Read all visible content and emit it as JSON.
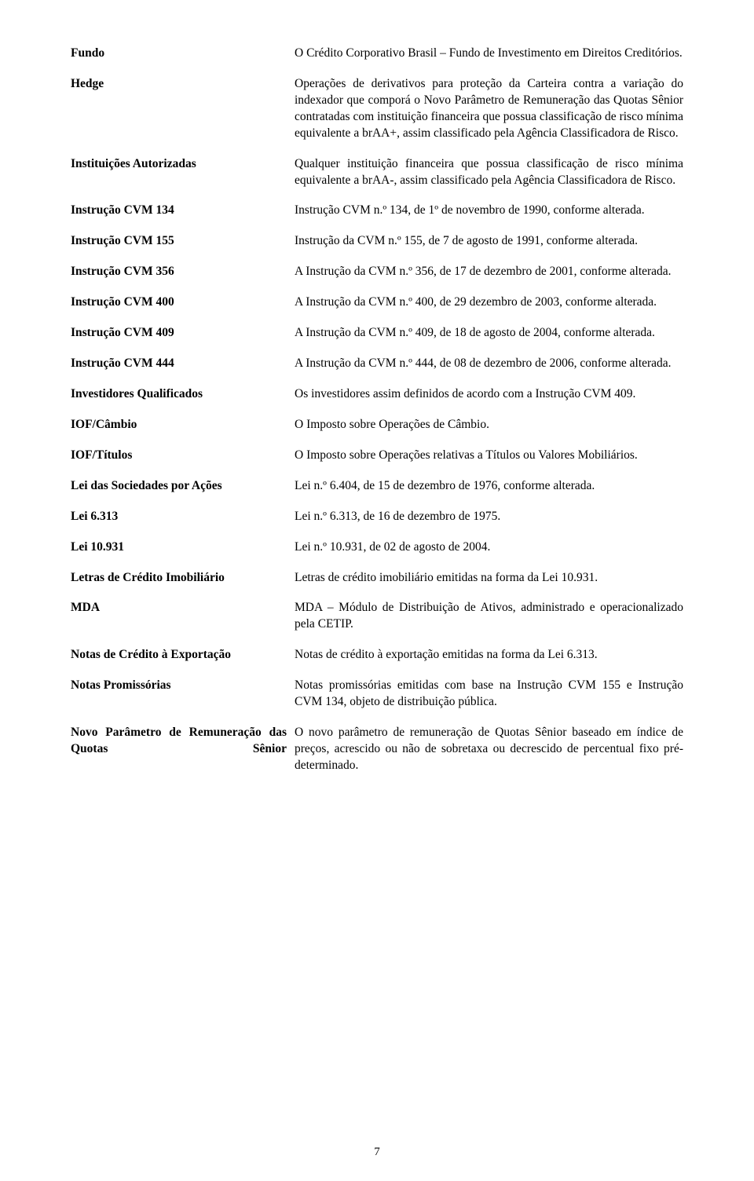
{
  "rows": [
    {
      "term": "Fundo",
      "def": "O Crédito Corporativo Brasil – Fundo de Investimento em Direitos Creditórios."
    },
    {
      "term": "Hedge",
      "def": "Operações de derivativos para proteção da Carteira contra a variação do indexador que comporá o Novo Parâmetro de Remuneração das Quotas Sênior contratadas com instituição financeira que possua classificação de risco mínima equivalente a brAA+, assim classificado pela Agência Classificadora de Risco."
    },
    {
      "term": "Instituições Autorizadas",
      "def": "Qualquer instituição financeira que possua classificação de risco mínima equivalente a brAA-, assim classificado pela Agência Classificadora de Risco."
    },
    {
      "term": "Instrução CVM 134",
      "def": "Instrução CVM n.º 134, de 1º de novembro de 1990, conforme alterada."
    },
    {
      "term": "Instrução CVM 155",
      "def": "Instrução da CVM n.º 155, de 7 de agosto de 1991, conforme alterada."
    },
    {
      "term": "Instrução CVM 356",
      "def": "A Instrução da CVM n.º 356, de 17 de dezembro de 2001, conforme alterada."
    },
    {
      "term": "Instrução CVM 400",
      "def": "A Instrução da CVM n.º 400, de 29 dezembro de 2003, conforme alterada."
    },
    {
      "term": "Instrução CVM 409",
      "def": "A Instrução da CVM n.º 409, de 18 de agosto de 2004, conforme alterada."
    },
    {
      "term": "Instrução CVM 444",
      "def": "A Instrução da CVM n.º 444, de 08 de dezembro de 2006, conforme alterada."
    },
    {
      "term": "Investidores Qualificados",
      "def": "Os investidores assim definidos de acordo com a Instrução CVM 409."
    },
    {
      "term": "IOF/Câmbio",
      "def": "O Imposto sobre Operações de Câmbio."
    },
    {
      "term": "IOF/Títulos",
      "def": "O Imposto sobre Operações relativas a Títulos ou Valores Mobiliários."
    },
    {
      "term": "Lei das Sociedades por Ações",
      "def": "Lei n.º 6.404, de 15 de dezembro de 1976, conforme alterada."
    },
    {
      "term": "Lei 6.313",
      "def": "Lei n.º 6.313, de 16 de dezembro de 1975."
    },
    {
      "term": "Lei 10.931",
      "def": "Lei n.º 10.931, de 02 de agosto de 2004."
    },
    {
      "term": "Letras de Crédito Imobiliário",
      "def": "Letras de crédito imobiliário emitidas na forma da Lei 10.931."
    },
    {
      "term": "MDA",
      "def": "MDA – Módulo de Distribuição de Ativos, administrado e operacionalizado pela CETIP."
    },
    {
      "term": "Notas de Crédito à Exportação",
      "def": "Notas de crédito à exportação emitidas na forma da Lei 6.313."
    },
    {
      "term": "Notas Promissórias",
      "def": "Notas promissórias emitidas com base na Instrução CVM 155 e Instrução CVM 134, objeto de distribuição pública."
    },
    {
      "term": "Novo Parâmetro de Remuneração das Quotas Sênior",
      "justify": true,
      "def": "O novo parâmetro de remuneração de Quotas Sênior baseado em índice de preços, acrescido ou não de sobretaxa ou decrescido de percentual fixo pré-determinado."
    }
  ],
  "pageNumber": "7"
}
